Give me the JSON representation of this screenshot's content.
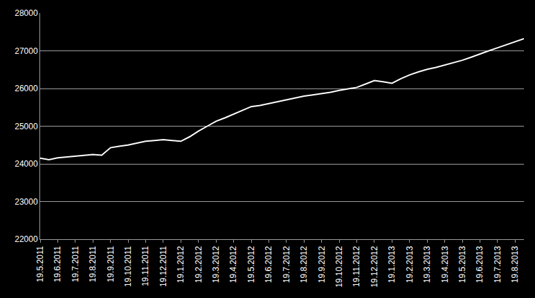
{
  "chart_data": {
    "type": "line",
    "categories": [
      "19.5.2011",
      null,
      "19.6.2011",
      null,
      "19.7.2011",
      null,
      "19.8.2011",
      null,
      "19.9.2011",
      null,
      "19.10.2011",
      null,
      "19.11.2011",
      null,
      "19.12.2011",
      null,
      "19.1.2012",
      null,
      "19.2.2012",
      null,
      "19.3.2012",
      null,
      "19.4.2012",
      null,
      "19.5.2012",
      null,
      "19.6.2012",
      null,
      "19.7.2012",
      null,
      "19.8.2012",
      null,
      "19.9.2012",
      null,
      "19.10.2012",
      null,
      "19.11.2012",
      null,
      "19.12.2012",
      null,
      "19.1.2013",
      null,
      "19.2.2013",
      null,
      "19.3.2013",
      null,
      "19.4.2013",
      null,
      "19.5.2013",
      null,
      "19.6.2013",
      null,
      "19.7.2013",
      null,
      "19.8.2013",
      null
    ],
    "values": [
      24150,
      24110,
      24160,
      24180,
      24200,
      24220,
      24250,
      24230,
      24430,
      24470,
      24500,
      24550,
      24600,
      24620,
      24640,
      24620,
      24600,
      24720,
      24870,
      25000,
      25130,
      25220,
      25320,
      25420,
      25520,
      25550,
      25600,
      25650,
      25710,
      25760,
      25800,
      25830,
      25860,
      25900,
      25950,
      25990,
      26030,
      26120,
      26210,
      26180,
      26140,
      26260,
      26360,
      26440,
      26510,
      26560,
      26620,
      26680,
      26750,
      26830,
      26920,
      27000,
      27080,
      27160,
      27240,
      27320
    ],
    "color": "#ffffff",
    "ylim": [
      22000,
      28000
    ],
    "yticks": [
      22000,
      23000,
      24000,
      25000,
      26000,
      27000,
      28000
    ],
    "grid": true
  }
}
